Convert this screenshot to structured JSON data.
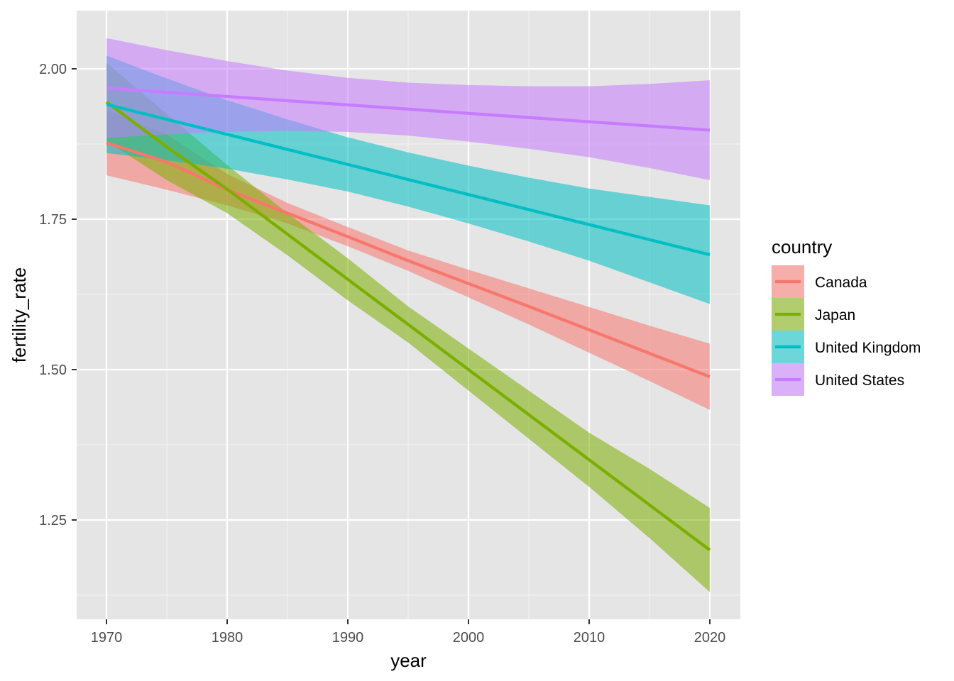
{
  "chart_data": {
    "type": "line",
    "xlabel": "year",
    "ylabel": "fertility_rate",
    "xlim": [
      1967.5,
      2022.5
    ],
    "ylim": [
      1.125,
      2.1
    ],
    "x_ticks": [
      1970,
      1980,
      1990,
      2000,
      2010,
      2020
    ],
    "y_ticks": [
      1.25,
      1.5,
      1.75,
      2.0
    ],
    "x_tick_labels": [
      "1970",
      "1980",
      "1990",
      "2000",
      "2010",
      "2020"
    ],
    "y_tick_labels": [
      "1.25",
      "1.50",
      "1.75",
      "2.00"
    ],
    "x_minor_ticks": [
      1975,
      1985,
      1995,
      2005,
      2015
    ],
    "y_minor_ticks": [
      1.125,
      1.375,
      1.625,
      1.875
    ],
    "grid": true,
    "panel_background": "#e5e5e5",
    "legend": {
      "title": "country",
      "position": "right"
    },
    "x": [
      1970,
      1975,
      1980,
      1985,
      1990,
      1995,
      2000,
      2005,
      2010,
      2015,
      2020
    ],
    "series": [
      {
        "name": "Canada",
        "color": "#f8766d",
        "fit": [
          1.877,
          1.845,
          1.799,
          1.76,
          1.721,
          1.681,
          1.643,
          1.605,
          1.566,
          1.527,
          1.488
        ],
        "lower": [
          1.823,
          1.799,
          1.773,
          1.743,
          1.705,
          1.664,
          1.62,
          1.575,
          1.528,
          1.481,
          1.433
        ],
        "upper": [
          1.931,
          1.891,
          1.825,
          1.777,
          1.737,
          1.698,
          1.666,
          1.635,
          1.604,
          1.573,
          1.543
        ]
      },
      {
        "name": "Japan",
        "color": "#7cae00",
        "fit": [
          1.945,
          1.87,
          1.8,
          1.725,
          1.65,
          1.575,
          1.5,
          1.425,
          1.35,
          1.275,
          1.2
        ],
        "lower": [
          1.88,
          1.815,
          1.76,
          1.69,
          1.615,
          1.545,
          1.465,
          1.385,
          1.305,
          1.22,
          1.13
        ],
        "upper": [
          2.01,
          1.925,
          1.84,
          1.76,
          1.685,
          1.605,
          1.535,
          1.465,
          1.395,
          1.335,
          1.27
        ]
      },
      {
        "name": "United Kingdom",
        "color": "#00bfc4",
        "fit": [
          1.941,
          1.916,
          1.891,
          1.866,
          1.841,
          1.816,
          1.791,
          1.766,
          1.741,
          1.716,
          1.691
        ],
        "lower": [
          1.86,
          1.848,
          1.834,
          1.816,
          1.796,
          1.771,
          1.743,
          1.713,
          1.681,
          1.645,
          1.609
        ],
        "upper": [
          2.022,
          1.984,
          1.948,
          1.916,
          1.886,
          1.861,
          1.839,
          1.819,
          1.801,
          1.787,
          1.773
        ]
      },
      {
        "name": "United States",
        "color": "#c77cff",
        "fit": [
          1.968,
          1.961,
          1.954,
          1.947,
          1.94,
          1.933,
          1.926,
          1.919,
          1.912,
          1.905,
          1.898
        ],
        "lower": [
          1.885,
          1.891,
          1.895,
          1.897,
          1.895,
          1.889,
          1.879,
          1.867,
          1.853,
          1.835,
          1.815
        ],
        "upper": [
          2.051,
          2.031,
          2.013,
          1.997,
          1.985,
          1.977,
          1.973,
          1.971,
          1.971,
          1.975,
          1.981
        ]
      }
    ]
  }
}
